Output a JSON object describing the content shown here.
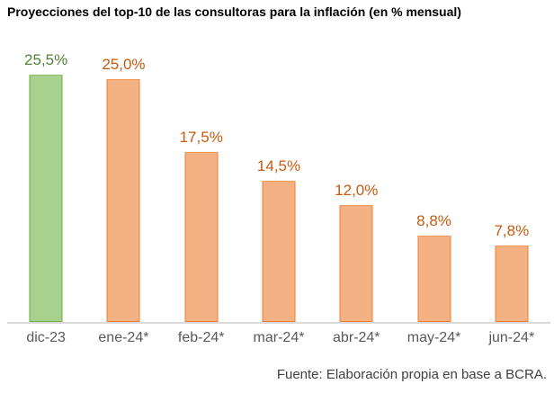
{
  "title": "Proyecciones del top-10 de las consultoras para la inflación (en % mensual)",
  "source": "Fuente: Elaboración propia en base a BCRA.",
  "chart_data": {
    "type": "bar",
    "title": "Proyecciones del top-10 de las consultoras para la inflación (en % mensual)",
    "categories": [
      "dic-23",
      "ene-24*",
      "feb-24*",
      "mar-24*",
      "abr-24*",
      "may-24*",
      "jun-24*"
    ],
    "values": [
      25.5,
      25.0,
      17.5,
      14.5,
      12.0,
      8.8,
      7.8
    ],
    "value_labels": [
      "25,5%",
      "25,0%",
      "17,5%",
      "14,5%",
      "12,0%",
      "8,8%",
      "7,8%"
    ],
    "xlabel": "",
    "ylabel": "",
    "ylim": [
      0,
      27
    ],
    "grid": false,
    "legend": "none",
    "y_axis_visible": false,
    "highlight_index": 0,
    "annotation": "Fuente: Elaboración propia en base a BCRA.",
    "palette": {
      "highlight": {
        "fill": "#a9d18e",
        "border": "#70ad47",
        "label": "#538135"
      },
      "default": {
        "fill": "#f4b183",
        "border": "#ed7d31",
        "label": "#c55a11"
      }
    },
    "axis_line_color": "#d9d9d9",
    "tick_label_color": "#595959"
  }
}
